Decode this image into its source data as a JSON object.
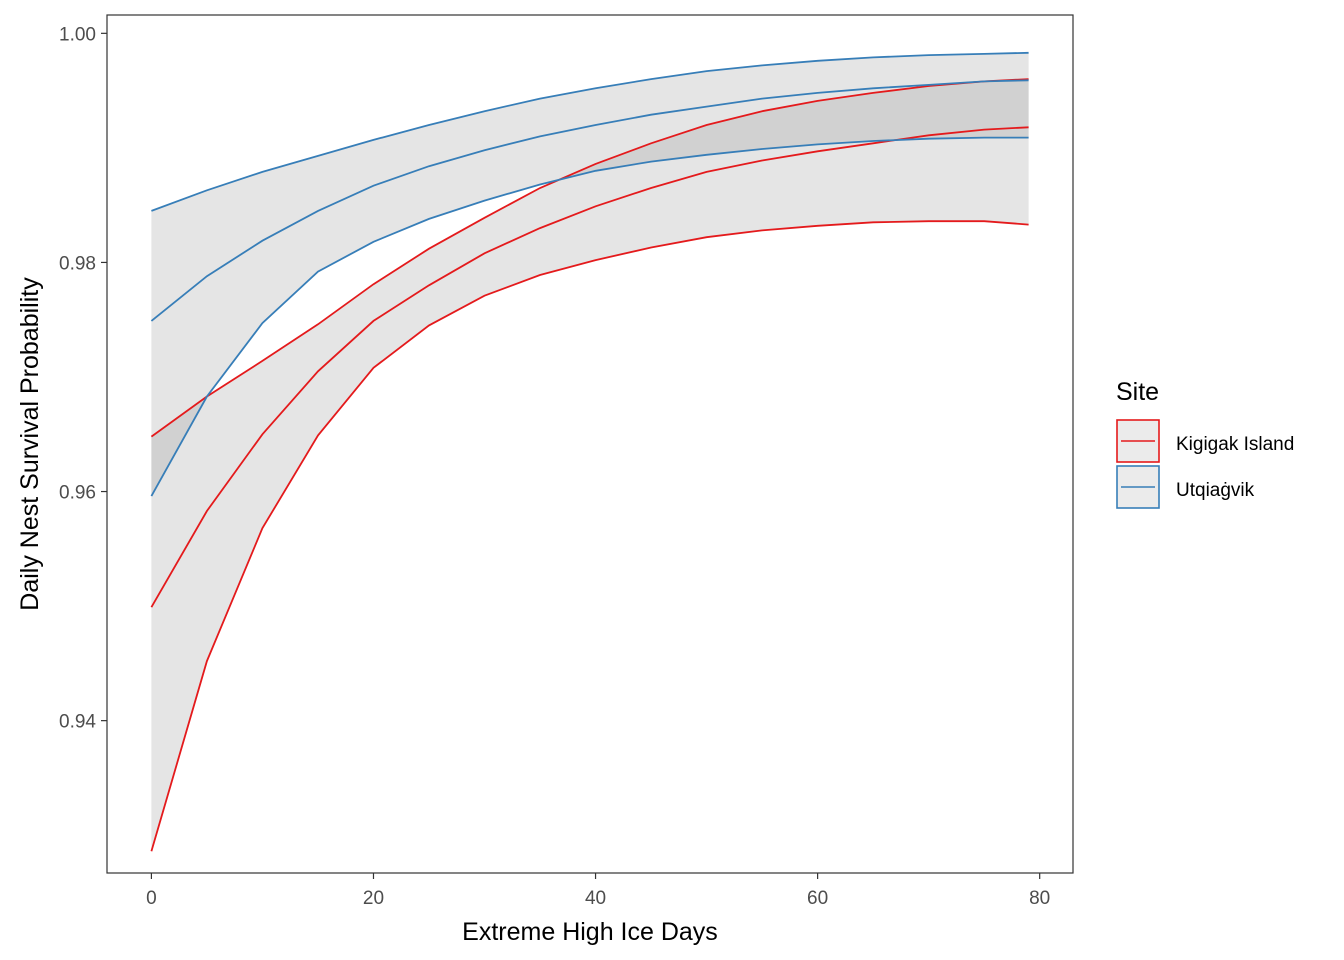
{
  "chart_data": {
    "type": "line",
    "xlabel": "Extreme High Ice Days",
    "ylabel": "Daily Nest Survival Probability",
    "xlim": [
      -4,
      83
    ],
    "ylim": [
      0.9267,
      1.0016
    ],
    "x_ticks": [
      0,
      20,
      40,
      60,
      80
    ],
    "x_tick_labels": [
      "0",
      "20",
      "40",
      "60",
      "80"
    ],
    "y_ticks": [
      0.94,
      0.96,
      0.98,
      1.0
    ],
    "y_tick_labels": [
      "0.94",
      "0.96",
      "0.98",
      "1.00"
    ],
    "grid": false,
    "legend": {
      "title": "Site",
      "placement": "right"
    },
    "x": [
      0,
      5,
      10,
      15,
      20,
      25,
      30,
      35,
      40,
      45,
      50,
      55,
      60,
      65,
      70,
      75,
      79
    ],
    "series": [
      {
        "name": "Kigigak Island",
        "color": "#e41a1c",
        "fit": [
          0.9499,
          0.9583,
          0.965,
          0.9705,
          0.9749,
          0.978,
          0.9808,
          0.983,
          0.9849,
          0.9865,
          0.9879,
          0.9889,
          0.9897,
          0.9904,
          0.9911,
          0.9916,
          0.9918
        ],
        "lower": [
          0.9286,
          0.9452,
          0.9568,
          0.9649,
          0.9708,
          0.9745,
          0.9771,
          0.9789,
          0.9802,
          0.9813,
          0.9822,
          0.9828,
          0.9832,
          0.9835,
          0.9836,
          0.9836,
          0.9833
        ],
        "upper": [
          0.9648,
          0.9683,
          0.9714,
          0.9746,
          0.9781,
          0.9812,
          0.9839,
          0.9865,
          0.9886,
          0.9904,
          0.992,
          0.9932,
          0.9941,
          0.9948,
          0.9954,
          0.9958,
          0.996
        ]
      },
      {
        "name": "Utqiaġvik",
        "color": "#377eb8",
        "fit": [
          0.9749,
          0.9788,
          0.9819,
          0.9845,
          0.9867,
          0.9884,
          0.9898,
          0.991,
          0.992,
          0.9929,
          0.9936,
          0.9943,
          0.9948,
          0.9952,
          0.9955,
          0.9958,
          0.9959
        ],
        "lower": [
          0.9596,
          0.9683,
          0.9747,
          0.9792,
          0.9818,
          0.9838,
          0.9854,
          0.9868,
          0.988,
          0.9888,
          0.9894,
          0.9899,
          0.9903,
          0.9906,
          0.9908,
          0.9909,
          0.9909
        ],
        "upper": [
          0.9845,
          0.9863,
          0.9879,
          0.9893,
          0.9907,
          0.992,
          0.9932,
          0.9943,
          0.9952,
          0.996,
          0.9967,
          0.9972,
          0.9976,
          0.9979,
          0.9981,
          0.9982,
          0.9983
        ]
      }
    ]
  }
}
